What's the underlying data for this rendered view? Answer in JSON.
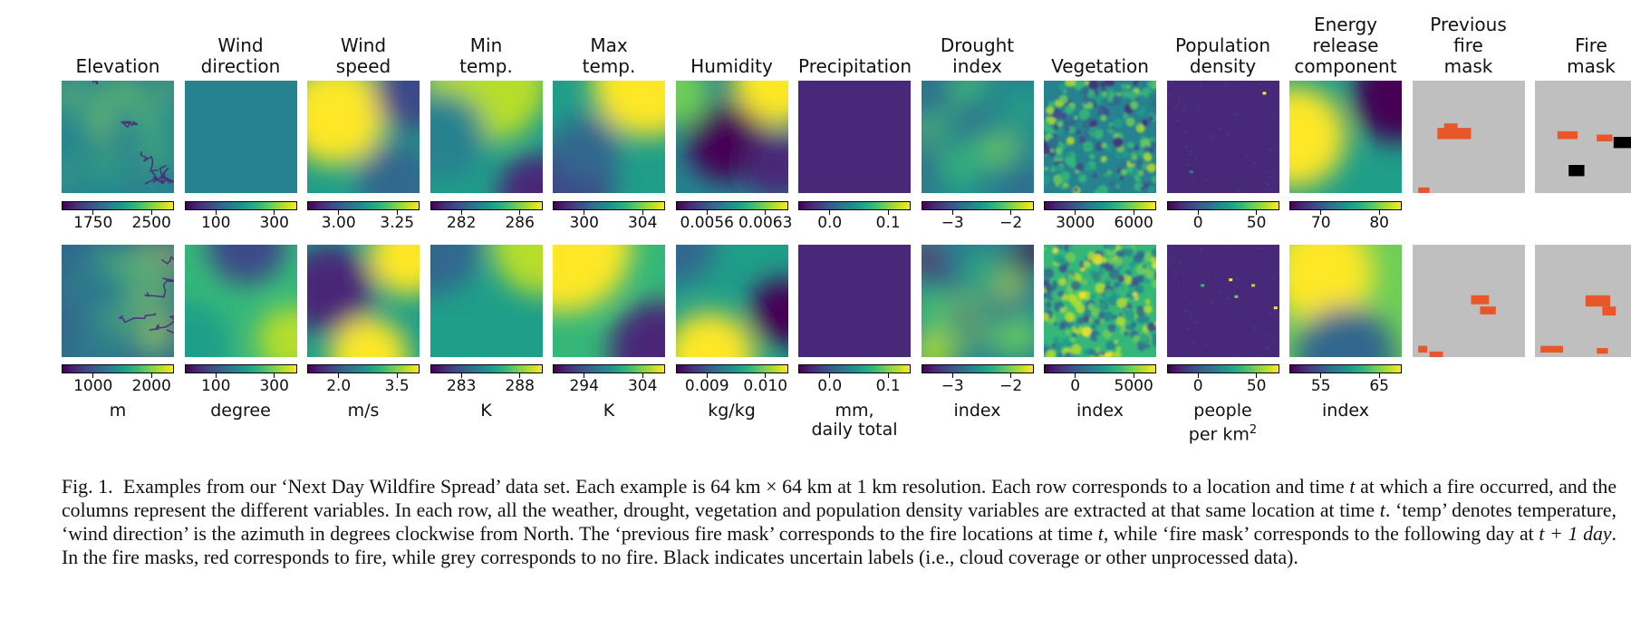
{
  "figure": {
    "columns": [
      {
        "key": "elevation",
        "title": [
          "Elevation"
        ],
        "unit": "m",
        "row1_ticks": [
          "1750",
          "2500"
        ],
        "row2_ticks": [
          "1000",
          "2000"
        ]
      },
      {
        "key": "wind_direction",
        "title": [
          "Wind",
          "direction"
        ],
        "unit": "degree",
        "row1_ticks": [
          "100",
          "300"
        ],
        "row2_ticks": [
          "100",
          "300"
        ]
      },
      {
        "key": "wind_speed",
        "title": [
          "Wind",
          "speed"
        ],
        "unit": "m/s",
        "row1_ticks": [
          "3.00",
          "3.25"
        ],
        "row2_ticks": [
          "2.0",
          "3.5"
        ]
      },
      {
        "key": "min_temp",
        "title": [
          "Min",
          "temp."
        ],
        "unit": "K",
        "row1_ticks": [
          "282",
          "286"
        ],
        "row2_ticks": [
          "283",
          "288"
        ]
      },
      {
        "key": "max_temp",
        "title": [
          "Max",
          "temp."
        ],
        "unit": "K",
        "row1_ticks": [
          "300",
          "304"
        ],
        "row2_ticks": [
          "294",
          "304"
        ]
      },
      {
        "key": "humidity",
        "title": [
          "Humidity"
        ],
        "unit": "kg/kg",
        "row1_ticks": [
          "0.0056",
          "0.0063"
        ],
        "row2_ticks": [
          "0.009",
          "0.010"
        ]
      },
      {
        "key": "precipitation",
        "title": [
          "Precipitation"
        ],
        "unit": "mm,\ndaily total",
        "row1_ticks": [
          "0.0",
          "0.1"
        ],
        "row2_ticks": [
          "0.0",
          "0.1"
        ]
      },
      {
        "key": "drought_index",
        "title": [
          "Drought",
          "index"
        ],
        "unit": "index",
        "row1_ticks": [
          "−3",
          "−2"
        ],
        "row2_ticks": [
          "−3",
          "−2"
        ]
      },
      {
        "key": "vegetation",
        "title": [
          "Vegetation"
        ],
        "unit": "index",
        "row1_ticks": [
          "3000",
          "6000"
        ],
        "row2_ticks": [
          "0",
          "5000"
        ]
      },
      {
        "key": "population_density",
        "title": [
          "Population",
          "density"
        ],
        "unit": "people\nper km²",
        "row1_ticks": [
          "0",
          "50"
        ],
        "row2_ticks": [
          "0",
          "50"
        ]
      },
      {
        "key": "erc",
        "title": [
          "Energy",
          "release",
          "component"
        ],
        "unit": "index",
        "row1_ticks": [
          "70",
          "80"
        ],
        "row2_ticks": [
          "55",
          "65"
        ]
      },
      {
        "key": "prev_fire_mask",
        "title": [
          "Previous",
          "fire",
          "mask"
        ],
        "unit": "",
        "row1_ticks": [],
        "row2_ticks": []
      },
      {
        "key": "fire_mask",
        "title": [
          "Fire",
          "mask"
        ],
        "unit": "",
        "row1_ticks": [],
        "row2_ticks": []
      }
    ],
    "colormap": [
      "#440154",
      "#482878",
      "#3e4989",
      "#31688e",
      "#26828e",
      "#1f9e89",
      "#35b779",
      "#6ece58",
      "#b5de2b",
      "#fde725"
    ],
    "mask_colors": {
      "fire": "#e8562a",
      "no_fire": "#bfbfbf",
      "uncertain": "#000000"
    }
  },
  "caption": {
    "label": "Fig. 1.",
    "text_parts": [
      {
        "t": "Examples from our ‘Next Day Wildfire Spread’ data set. Each example is 64 km × 64 km at 1 km resolution. Each row corresponds to a location and time "
      },
      {
        "t": "t",
        "it": true
      },
      {
        "t": " at which a fire occurred, and the columns represent the different variables. In each row, all the weather, drought, vegetation and population density variables are extracted at that same location at time "
      },
      {
        "t": "t",
        "it": true
      },
      {
        "t": ". ‘temp’ denotes temperature, ‘wind direction’ is the azimuth in degrees clockwise from North. The ‘previous fire mask’ corresponds to the fire locations at time "
      },
      {
        "t": "t",
        "it": true
      },
      {
        "t": ", while ‘fire mask’ corresponds to the following day at "
      },
      {
        "t": "t + 1 day",
        "it": true
      },
      {
        "t": ". In the fire masks, red corresponds to fire, while grey corresponds to no fire. Black indicates uncertain labels (i.e., cloud coverage or other unprocessed data)."
      }
    ]
  }
}
